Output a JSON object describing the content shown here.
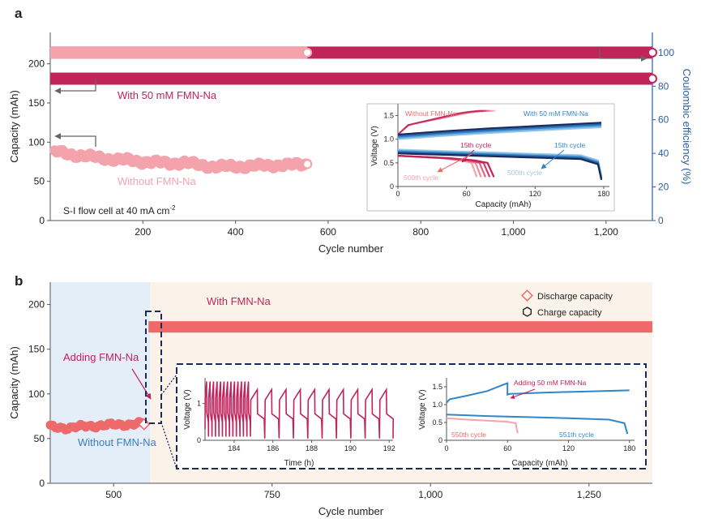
{
  "colors": {
    "crimson": "#c0245a",
    "pink": "#f4a3ad",
    "salmon": "#ee6a6a",
    "blue_axis": "#2a5ea6",
    "inset_blue": "#2f86c8",
    "inset_lightblue": "#9ec9ea",
    "inset_navy": "#1a2b5a",
    "bg_blue": "#e3eef9",
    "bg_cream": "#fbf3ea",
    "axis_gray": "#555555"
  },
  "chart_data": [
    {
      "panel": "a",
      "type": "scatter",
      "xlabel": "Cycle number",
      "ylabel": "Capacity (mAh)",
      "y2label": "Coulombic efficiency (%)",
      "xlim": [
        0,
        1300
      ],
      "ylim": [
        0,
        240
      ],
      "y2lim": [
        0,
        112
      ],
      "xticks": [
        200,
        400,
        600,
        800,
        1000,
        1200
      ],
      "xtick_labels": [
        "200",
        "400",
        "600",
        "800",
        "1,000",
        "1,200"
      ],
      "yticks": [
        0,
        50,
        100,
        150,
        200
      ],
      "y2ticks": [
        0,
        20,
        40,
        60,
        80,
        100
      ],
      "annotation": "S-I flow cell at 40 mA cm",
      "annotation_sup": "-2",
      "series": [
        {
          "name": "With 50 mM FMN-Na",
          "axis": "capacity",
          "color": "#c0245a",
          "x": [
            0,
            1300
          ],
          "y": [
            181,
            181
          ]
        },
        {
          "name": "With 50 mM FMN-Na",
          "axis": "coulombic efficiency",
          "color": "#c0245a",
          "x": [
            0,
            1300
          ],
          "y": [
            100,
            100
          ]
        },
        {
          "name": "Without FMN-Na",
          "axis": "coulombic efficiency",
          "color": "#f4a3ad",
          "x": [
            0,
            555
          ],
          "y": [
            100,
            100
          ]
        },
        {
          "name": "Without FMN-Na",
          "axis": "capacity",
          "color": "#f4a3ad",
          "x": [
            10,
            30,
            50,
            80,
            110,
            140,
            170,
            200,
            230,
            260,
            290,
            320,
            350,
            380,
            410,
            440,
            470,
            500,
            530,
            555
          ],
          "y": [
            88,
            86,
            84,
            82,
            80,
            78,
            77,
            75,
            74,
            73,
            74,
            71,
            69,
            69,
            69,
            70,
            70,
            71,
            71,
            72
          ]
        }
      ],
      "labels": {
        "with": "With 50 mM FMN-Na",
        "without": "Without FMN-Na"
      },
      "inset": {
        "type": "line",
        "xlabel": "Capacity (mAh)",
        "ylabel": "Voltage (V)",
        "xlim": [
          0,
          185
        ],
        "ylim": [
          0,
          1.75
        ],
        "xticks": [
          0,
          60,
          120,
          180
        ],
        "yticks": [
          0,
          0.5,
          1.0,
          1.5
        ],
        "ytick_labels": [
          "0",
          "0.5",
          "1.0",
          "1.5"
        ],
        "labels": [
          "Without FMN-Na",
          "With 50 mM FMN-Na",
          "15th cycle",
          "15th cycle",
          "500th cycle",
          "500th cycle"
        ],
        "series": [
          {
            "name": "Without FMN-Na",
            "color": "#f4a3ad",
            "x": [
              0,
              5,
              10,
              20,
              30,
              40,
              50,
              60,
              70,
              80,
              85
            ],
            "y": [
              1.1,
              1.2,
              1.3,
              1.35,
              1.4,
              1.45,
              1.5,
              1.55,
              1.58,
              1.6,
              1.6
            ]
          },
          {
            "name": "Without FMN-Na",
            "color": "#c0245a",
            "x": [
              0,
              40,
              60,
              70,
              75
            ],
            "y": [
              0.65,
              0.6,
              0.55,
              0.5,
              0.2
            ]
          },
          {
            "name": "With 50 mM FMN-Na",
            "color": "#2f86c8",
            "x": [
              0,
              40,
              80,
              120,
              160,
              178
            ],
            "y": [
              1.05,
              1.12,
              1.18,
              1.23,
              1.28,
              1.3
            ]
          },
          {
            "name": "With 50 mM FMN-Na",
            "color": "#1a2b5a",
            "x": [
              0,
              40,
              80,
              120,
              160,
              175,
              178
            ],
            "y": [
              0.78,
              0.75,
              0.72,
              0.69,
              0.66,
              0.55,
              0.22
            ]
          }
        ]
      }
    },
    {
      "panel": "b",
      "type": "scatter",
      "xlabel": "Cycle number",
      "ylabel": "Capacity (mAh)",
      "xlim": [
        400,
        1350
      ],
      "ylim": [
        0,
        225
      ],
      "xticks": [
        500,
        750,
        1000,
        1250
      ],
      "xtick_labels": [
        "500",
        "750",
        "1,000",
        "1,250"
      ],
      "yticks": [
        0,
        50,
        100,
        150,
        200
      ],
      "regions": [
        {
          "label": "Without FMN-Na",
          "x": [
            400,
            550
          ]
        },
        {
          "label": "With FMN-Na",
          "x": [
            550,
            1350
          ]
        }
      ],
      "legend": [
        "Discharge capacity",
        "Charge capacity"
      ],
      "annotation": "Adding FMN-Na",
      "series": [
        {
          "name": "Without FMN-Na",
          "color": "#ee6a6a",
          "x": [
            400,
            430,
            460,
            490,
            520,
            550
          ],
          "y": [
            63,
            62,
            64,
            65,
            66,
            67
          ]
        },
        {
          "name": "With FMN-Na",
          "color": "#ee6a6a",
          "x": [
            555,
            800,
            1000,
            1200,
            1350
          ],
          "y": [
            175,
            175,
            175,
            175,
            175
          ]
        }
      ],
      "inset_time": {
        "type": "line",
        "xlabel": "Time (h)",
        "ylabel": "Voltage (V)",
        "xlim": [
          182.5,
          192.2
        ],
        "ylim": [
          0,
          1.7
        ],
        "xticks": [
          184,
          186,
          188,
          190,
          192
        ],
        "yticks": [
          0,
          1
        ],
        "color": "#c0245a",
        "before_period_h": 0.18,
        "after_period_h": 0.74,
        "switch_time_h": 184.8
      },
      "inset_capacity": {
        "type": "line",
        "xlabel": "Capacity (mAh)",
        "ylabel": "Voltage (V)",
        "xlim": [
          0,
          185
        ],
        "ylim": [
          0,
          1.75
        ],
        "xticks": [
          0,
          60,
          120,
          180
        ],
        "yticks": [
          0,
          0.5,
          1.0,
          1.5
        ],
        "ytick_labels": [
          "0",
          "0.5",
          "1.0",
          "1.5"
        ],
        "labels": [
          "Adding 50 mM FMN-Na",
          "550th cycle",
          "551th cycle"
        ],
        "series": [
          {
            "name": "550th cycle",
            "color": "#f4a3ad",
            "x": [
              0,
              20,
              40,
              60,
              68,
              70
            ],
            "y": [
              0.62,
              0.58,
              0.55,
              0.52,
              0.48,
              0.2
            ]
          },
          {
            "name": "charge",
            "color": "#2f86c8",
            "x": [
              0,
              3,
              20,
              40,
              55,
              60,
              60,
              62,
              100,
              140,
              180
            ],
            "y": [
              1.05,
              1.15,
              1.25,
              1.38,
              1.55,
              1.6,
              1.28,
              1.3,
              1.34,
              1.37,
              1.4
            ]
          },
          {
            "name": "551th cycle",
            "color": "#2f86c8",
            "x": [
              0,
              40,
              80,
              120,
              160,
              175,
              178
            ],
            "y": [
              0.72,
              0.68,
              0.65,
              0.62,
              0.58,
              0.48,
              0.18
            ]
          }
        ]
      }
    }
  ]
}
